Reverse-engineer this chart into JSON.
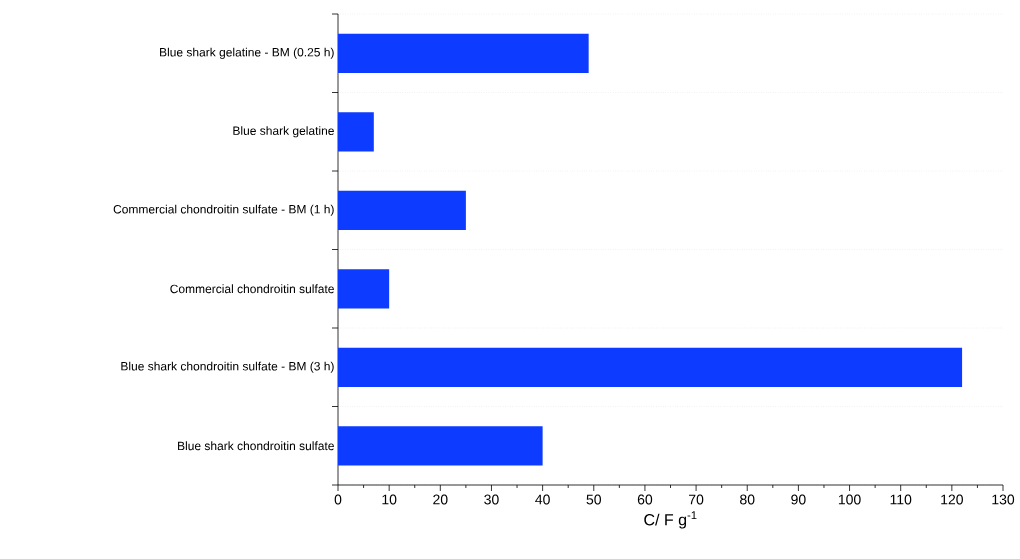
{
  "chart_data": {
    "type": "bar",
    "orientation": "horizontal",
    "xlabel": "C/ F g$^{-1}$",
    "categories": [
      "Blue shark gelatine - BM (0.25 h)",
      "Blue shark gelatine",
      "Commercial chondroitin sulfate - BM (1 h)",
      "Commercial chondroitin sulfate",
      "Blue shark chondroitin sulfate - BM (3 h)",
      "Blue shark chondroitin sulfate"
    ],
    "values": [
      49,
      7,
      25,
      10,
      122,
      40
    ],
    "color": "#0d3bff",
    "xlim": [
      0,
      130
    ],
    "xticks": [
      0,
      10,
      20,
      30,
      40,
      50,
      60,
      70,
      80,
      90,
      100,
      110,
      120,
      130
    ],
    "grid": "y"
  }
}
